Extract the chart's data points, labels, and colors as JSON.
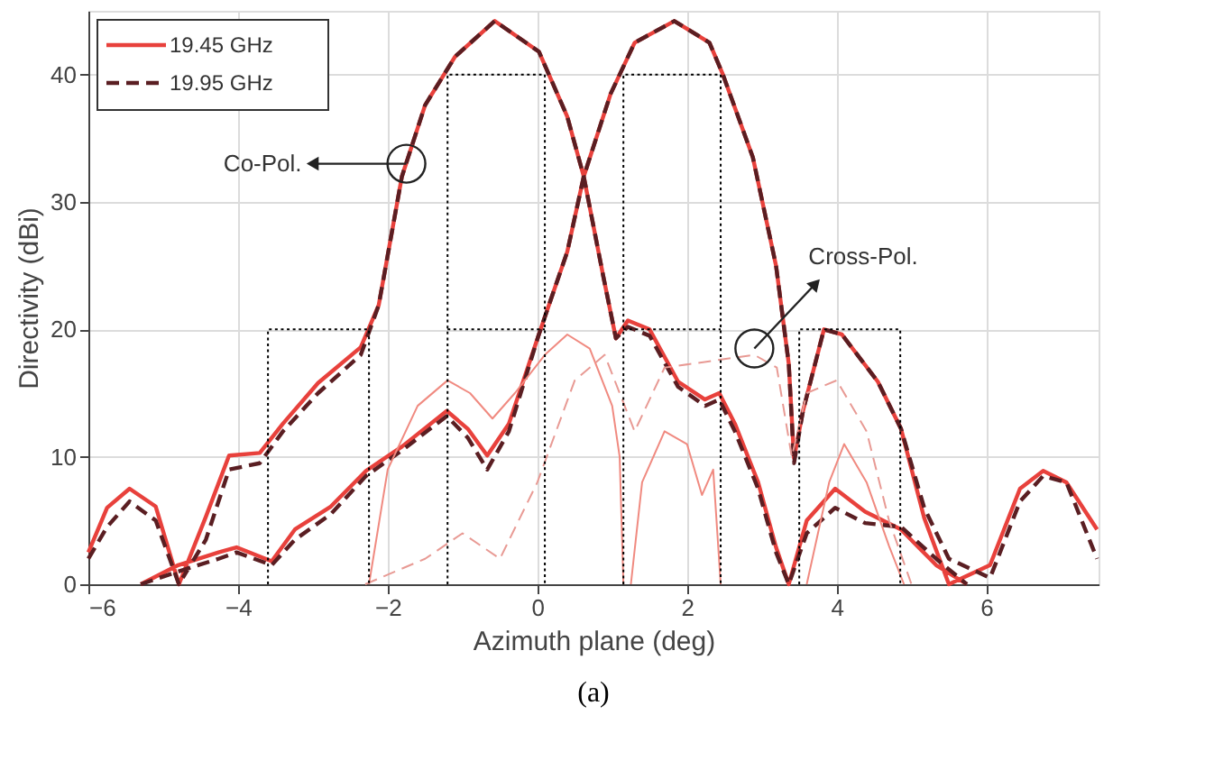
{
  "chart_data": {
    "type": "line",
    "xlabel": "Azimuth plane (deg)",
    "ylabel": "Directivity (dBi)",
    "xlim": [
      -6,
      7.5
    ],
    "xticks": [
      -6,
      -4,
      -2,
      0,
      2,
      4,
      6
    ],
    "ylim": [
      0,
      45
    ],
    "yticks": [
      0,
      10,
      20,
      30,
      40
    ],
    "grid": true,
    "legend": "top left",
    "annotations": [
      {
        "text": "Co-Pol.",
        "x": -1.75,
        "y": 33
      },
      {
        "text": "Cross-Pol.",
        "x": 2.9,
        "y": 18.5
      },
      "(a)"
    ],
    "series": [
      {
        "name": "19.45 GHz",
        "color": "#e8413c",
        "line_style": "solid",
        "x": [
          -6,
          -5.75,
          -5.45,
          -5.1,
          -4.79,
          -4.43,
          -4.12,
          -3.71,
          -3.4,
          -2.93,
          -2.36,
          -2.12,
          -1.81,
          -1.5,
          -1.1,
          -0.57,
          0.02,
          0.4,
          0.62,
          0.88,
          1.05,
          1.21,
          1.5,
          1.88,
          2.24,
          2.43,
          2.64,
          2.95,
          3.19,
          3.36,
          3.6,
          3.98,
          4.38,
          4.86,
          5.33,
          5.74,
          null,
          -5.3,
          -4.8,
          -4.26,
          -4.02,
          -3.55,
          -3.24,
          -2.76,
          -2.29,
          -1.81,
          -1.21,
          -0.93,
          -0.67,
          -0.38,
          0.02,
          0.4,
          0.62,
          0.98,
          1.3,
          1.83,
          2.3,
          2.48,
          2.88,
          3.19,
          3.36,
          3.43,
          3.55,
          3.83,
          4.07,
          4.55,
          4.86,
          5.17,
          5.5,
          6.05,
          6.45,
          6.76,
          7.07,
          7.48
        ],
        "values": [
          2.5,
          6,
          7.5,
          6.1,
          0,
          5.3,
          10.1,
          10.3,
          12.6,
          15.8,
          18.6,
          21.9,
          32,
          37.6,
          41.4,
          44.2,
          41.8,
          36.7,
          32,
          24.2,
          19.3,
          20.7,
          20,
          15.9,
          14.5,
          15,
          12.6,
          8,
          2.9,
          0,
          5,
          7.5,
          5.7,
          4.3,
          1.5,
          0,
          null,
          0,
          1.5,
          2.5,
          2.9,
          1.8,
          4.3,
          6.1,
          8.9,
          10.8,
          13.6,
          12.2,
          10.1,
          12.6,
          19.6,
          26.1,
          32,
          38.5,
          42.5,
          44.2,
          42.5,
          40,
          33.5,
          25,
          17.3,
          9.9,
          13.6,
          20,
          19.6,
          15.9,
          12.2,
          5.2,
          0,
          1.5,
          7.5,
          8.9,
          8,
          4.3
        ]
      },
      {
        "name": "19.95 GHz",
        "color": "#5a1e22",
        "line_style": "dashed",
        "x": [
          -6,
          -5.75,
          -5.45,
          -5.1,
          -4.79,
          -4.43,
          -4.12,
          -3.71,
          -3.4,
          -2.93,
          -2.36,
          -2.12,
          -1.81,
          -1.5,
          -1.1,
          -0.57,
          0.02,
          0.4,
          0.62,
          0.88,
          1.05,
          1.21,
          1.5,
          1.88,
          2.24,
          2.43,
          2.64,
          2.95,
          3.19,
          3.36,
          3.6,
          3.98,
          4.38,
          4.86,
          5.33,
          5.74,
          null,
          -5.3,
          -4.8,
          -4.26,
          -4.02,
          -3.55,
          -3.24,
          -2.76,
          -2.29,
          -1.81,
          -1.21,
          -0.93,
          -0.67,
          -0.38,
          0.02,
          0.4,
          0.62,
          0.98,
          1.3,
          1.83,
          2.3,
          2.48,
          2.88,
          3.19,
          3.36,
          3.43,
          3.55,
          3.83,
          4.07,
          4.55,
          4.86,
          5.17,
          5.5,
          6.05,
          6.45,
          6.76,
          7.07,
          7.48
        ],
        "values": [
          2,
          4.5,
          6.5,
          5,
          0,
          3.5,
          9,
          9.5,
          12,
          15,
          18,
          21.9,
          32,
          37.6,
          41.4,
          44.2,
          41.8,
          36.7,
          32,
          24.2,
          19.3,
          20.2,
          19.5,
          15.5,
          14,
          14.5,
          12,
          7.5,
          2.5,
          0,
          4,
          6,
          4.8,
          4.5,
          2,
          0,
          null,
          0,
          1,
          2,
          2.5,
          1.5,
          3.5,
          5.5,
          8.5,
          10.5,
          13.2,
          11.5,
          9,
          12,
          19.6,
          26.1,
          32,
          38.5,
          42.5,
          44.2,
          42.5,
          40,
          33.5,
          25,
          17.3,
          9.5,
          13.6,
          20,
          19.6,
          15.9,
          12.2,
          6,
          2,
          0.5,
          6.5,
          8.5,
          8,
          2
        ]
      },
      {
        "color": "#f08a80",
        "line_style": "solid",
        "x": [
          -2.25,
          -2.0,
          -1.6,
          -1.2,
          -0.9,
          -0.6,
          -0.3,
          0.1,
          0.4,
          0.7,
          1.0,
          1.1,
          1.15,
          null,
          1.25,
          1.4,
          1.7,
          2.0,
          2.2,
          2.35,
          2.45,
          null,
          3.6,
          3.9,
          4.1,
          4.4,
          4.7,
          4.9
        ],
        "values": [
          0,
          9,
          14,
          16,
          15,
          13,
          15,
          18,
          19.6,
          18.5,
          14,
          10,
          0,
          null,
          0,
          8,
          12,
          11,
          7,
          9,
          0,
          null,
          0,
          8,
          11,
          8,
          3,
          0
        ]
      },
      {
        "color": "#e89a94",
        "line_style": "dashed",
        "x": [
          -2.3,
          -1.5,
          -1.0,
          -0.5,
          0,
          0.5,
          0.9,
          1.3,
          1.7,
          2.3,
          2.9,
          3.2,
          3.4,
          3.6,
          4.0,
          4.4,
          4.7,
          5.0
        ],
        "values": [
          0,
          2,
          4,
          2,
          8,
          16,
          18,
          12,
          17,
          17.5,
          18,
          17,
          10,
          15,
          16,
          12,
          5,
          0
        ]
      },
      {
        "color": "#000000",
        "line_style": "dotted",
        "x": [
          -3.6,
          -3.6,
          -2.25,
          -2.25,
          null,
          -1.2,
          -1.2,
          0.1,
          0.1,
          null,
          -1.2,
          0.1,
          null,
          1.15,
          1.15,
          2.45,
          2.45,
          null,
          1.15,
          2.45,
          null,
          3.5,
          3.5,
          4.85,
          4.85
        ],
        "values": [
          0,
          20,
          20,
          0,
          null,
          0,
          40,
          40,
          0,
          null,
          20,
          20,
          null,
          0,
          40,
          40,
          0,
          null,
          20,
          20,
          null,
          0,
          20,
          20,
          0
        ]
      }
    ]
  }
}
